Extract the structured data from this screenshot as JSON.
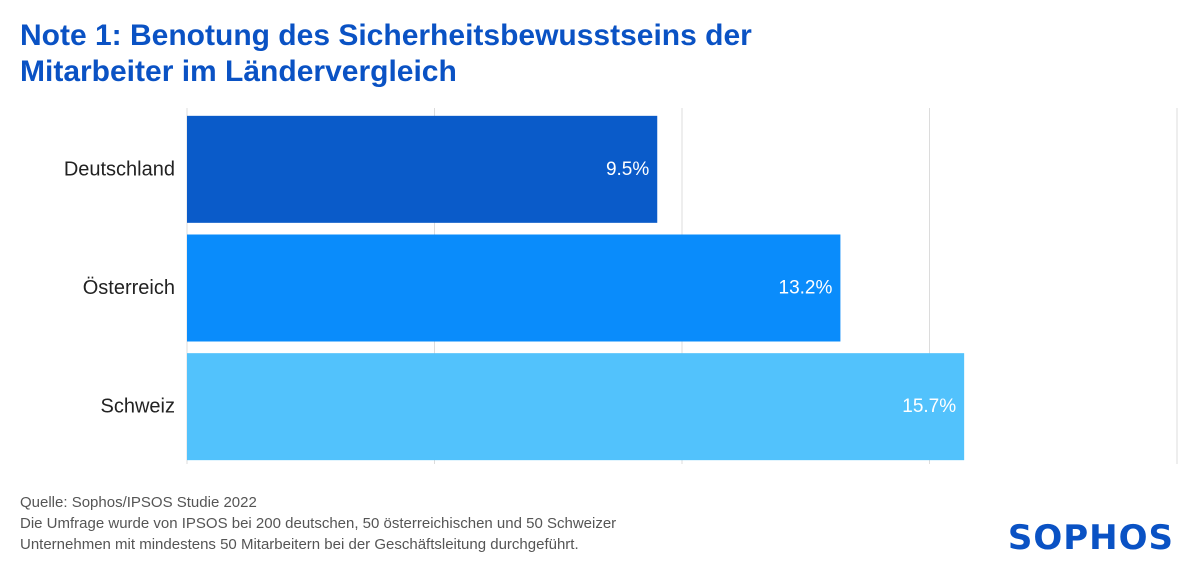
{
  "title": {
    "line1": "Note 1: Benotung des Sicherheitsbewusstseins der",
    "line2": "Mitarbeiter im Ländervergleich"
  },
  "chart_data": {
    "type": "bar",
    "orientation": "horizontal",
    "categories": [
      "Deutschland",
      "Österreich",
      "Schweiz"
    ],
    "values": [
      9.5,
      13.2,
      15.7
    ],
    "value_labels": [
      "9.5%",
      "13.2%",
      "15.7%"
    ],
    "colors": [
      "#0a5bc9",
      "#0a8cfb",
      "#52c2fc"
    ],
    "xlim": [
      0,
      20
    ],
    "grid": true,
    "xlabel": "",
    "ylabel": ""
  },
  "footnote": {
    "source": "Quelle: Sophos/IPSOS Studie 2022",
    "line2": "Die Umfrage wurde von IPSOS bei 200 deutschen, 50 österreichischen und 50 Schweizer",
    "line3": "Unternehmen mit mindestens 50 Mitarbeitern bei der Geschäftsleitung durchgeführt."
  },
  "logo": {
    "text": "SOPHOS"
  }
}
